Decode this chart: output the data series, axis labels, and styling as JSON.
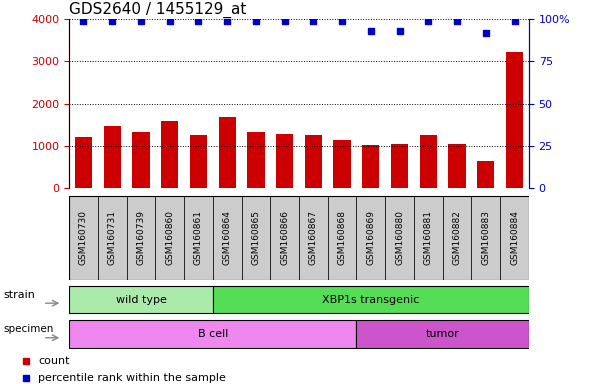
{
  "title": "GDS2640 / 1455129_at",
  "samples": [
    "GSM160730",
    "GSM160731",
    "GSM160739",
    "GSM160860",
    "GSM160861",
    "GSM160864",
    "GSM160865",
    "GSM160866",
    "GSM160867",
    "GSM160868",
    "GSM160869",
    "GSM160880",
    "GSM160881",
    "GSM160882",
    "GSM160883",
    "GSM160884"
  ],
  "counts": [
    1200,
    1470,
    1330,
    1580,
    1270,
    1680,
    1340,
    1290,
    1260,
    1150,
    1010,
    1040,
    1270,
    1040,
    640,
    3220
  ],
  "percentiles": [
    99,
    99,
    99,
    99,
    99,
    99,
    99,
    99,
    99,
    99,
    93,
    93,
    99,
    99,
    92,
    99
  ],
  "bar_color": "#cc0000",
  "dot_color": "#0000cc",
  "ylim_left": [
    0,
    4000
  ],
  "ylim_right": [
    0,
    100
  ],
  "yticks_left": [
    0,
    1000,
    2000,
    3000,
    4000
  ],
  "yticks_right": [
    0,
    25,
    50,
    75,
    100
  ],
  "strain_groups": [
    {
      "label": "wild type",
      "start": 0,
      "end": 4,
      "color": "#aaeaaa"
    },
    {
      "label": "XBP1s transgenic",
      "start": 5,
      "end": 15,
      "color": "#55dd55"
    }
  ],
  "specimen_groups": [
    {
      "label": "B cell",
      "start": 0,
      "end": 9,
      "color": "#ee88ee"
    },
    {
      "label": "tumor",
      "start": 10,
      "end": 15,
      "color": "#cc55cc"
    }
  ],
  "legend_count_color": "#cc0000",
  "legend_dot_color": "#0000cc",
  "xtick_bg_color": "#cccccc",
  "title_fontsize": 11
}
